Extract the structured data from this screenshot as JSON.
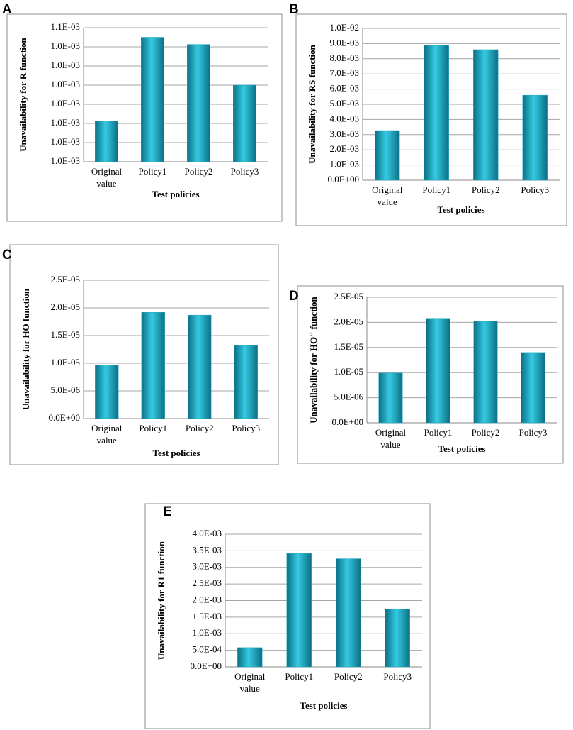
{
  "chart_data": [
    {
      "type": "bar",
      "title": "A",
      "ylabel": "Unavailability for R function",
      "xlabel": "Test policies",
      "categories": [
        "Original value",
        "Policy1",
        "Policy2",
        "Policy3"
      ],
      "values": [
        0.001013,
        0.001048,
        0.001045,
        0.001028
      ],
      "ylim": [
        0.000996,
        0.001052
      ],
      "yticks": [
        {
          "value": 0.000996,
          "label": "1.0E-03"
        },
        {
          "value": 0.001004,
          "label": "1.0E-03"
        },
        {
          "value": 0.001012,
          "label": "1.0E-03"
        },
        {
          "value": 0.00102,
          "label": "1.0E-03"
        },
        {
          "value": 0.001028,
          "label": "1.0E-03"
        },
        {
          "value": 0.001036,
          "label": "1.0E-03"
        },
        {
          "value": 0.001044,
          "label": "1.0E-03"
        },
        {
          "value": 0.001052,
          "label": "1.1E-03"
        }
      ],
      "color": "#1aa6c0",
      "grid": true
    },
    {
      "type": "bar",
      "title": "B",
      "ylabel": "Unavailability for RS function",
      "xlabel": "Test policies",
      "categories": [
        "Original value",
        "Policy1",
        "Policy2",
        "Policy3"
      ],
      "values": [
        0.00327,
        0.00888,
        0.0086,
        0.0056
      ],
      "ylim": [
        0,
        0.01
      ],
      "yticks": [
        {
          "value": 0,
          "label": "0.0E+00"
        },
        {
          "value": 0.001,
          "label": "1.0E-03"
        },
        {
          "value": 0.002,
          "label": "2.0E-03"
        },
        {
          "value": 0.003,
          "label": "3.0E-03"
        },
        {
          "value": 0.004,
          "label": "4.0E-03"
        },
        {
          "value": 0.005,
          "label": "5.0E-03"
        },
        {
          "value": 0.006,
          "label": "6.0E-03"
        },
        {
          "value": 0.007,
          "label": "7.0E-03"
        },
        {
          "value": 0.008,
          "label": "8.0E-03"
        },
        {
          "value": 0.009,
          "label": "9.0E-03"
        },
        {
          "value": 0.01,
          "label": "1.0E-02"
        }
      ],
      "color": "#1aa6c0",
      "grid": true
    },
    {
      "type": "bar",
      "title": "C",
      "ylabel": "Unavailability for HO function",
      "xlabel": "Test policies",
      "categories": [
        "Original value",
        "Policy1",
        "Policy2",
        "Policy3"
      ],
      "values": [
        9.7e-06,
        1.92e-05,
        1.87e-05,
        1.32e-05
      ],
      "ylim": [
        0,
        2.5e-05
      ],
      "yticks": [
        {
          "value": 0,
          "label": "0.0E+00"
        },
        {
          "value": 5e-06,
          "label": "5.0E-06"
        },
        {
          "value": 1e-05,
          "label": "1.0E-05"
        },
        {
          "value": 1.5e-05,
          "label": "1.5E-05"
        },
        {
          "value": 2e-05,
          "label": "2.0E-05"
        },
        {
          "value": 2.5e-05,
          "label": "2.5E-05"
        }
      ],
      "color": "#1aa6c0",
      "grid": true
    },
    {
      "type": "bar",
      "title": "D",
      "ylabel": "Unavailability for HO'' function",
      "xlabel": "Test policies",
      "categories": [
        "Original value",
        "Policy1",
        "Policy2",
        "Policy3"
      ],
      "values": [
        9.9e-06,
        2.08e-05,
        2.02e-05,
        1.4e-05
      ],
      "ylim": [
        0,
        2.5e-05
      ],
      "yticks": [
        {
          "value": 0,
          "label": "0.0E+00"
        },
        {
          "value": 5e-06,
          "label": "5.0E-06"
        },
        {
          "value": 1e-05,
          "label": "1.0E-05"
        },
        {
          "value": 1.5e-05,
          "label": "1.5E-05"
        },
        {
          "value": 2e-05,
          "label": "2.0E-05"
        },
        {
          "value": 2.5e-05,
          "label": "2.5E-05"
        }
      ],
      "color": "#1aa6c0",
      "grid": true
    },
    {
      "type": "bar",
      "title": "E",
      "ylabel": "Unavailability for R1 function",
      "xlabel": "Test policies",
      "categories": [
        "Original value",
        "Policy1",
        "Policy2",
        "Policy3"
      ],
      "values": [
        0.00058,
        0.00342,
        0.00326,
        0.00175
      ],
      "ylim": [
        0,
        0.004
      ],
      "yticks": [
        {
          "value": 0,
          "label": "0.0E+00"
        },
        {
          "value": 0.0005,
          "label": "5.0E-04"
        },
        {
          "value": 0.001,
          "label": "1.0E-03"
        },
        {
          "value": 0.0015,
          "label": "1.5E-03"
        },
        {
          "value": 0.002,
          "label": "2.0E-03"
        },
        {
          "value": 0.0025,
          "label": "2.5E-03"
        },
        {
          "value": 0.003,
          "label": "3.0E-03"
        },
        {
          "value": 0.0035,
          "label": "3.5E-03"
        },
        {
          "value": 0.004,
          "label": "4.0E-03"
        }
      ],
      "color": "#1aa6c0",
      "grid": true
    }
  ]
}
